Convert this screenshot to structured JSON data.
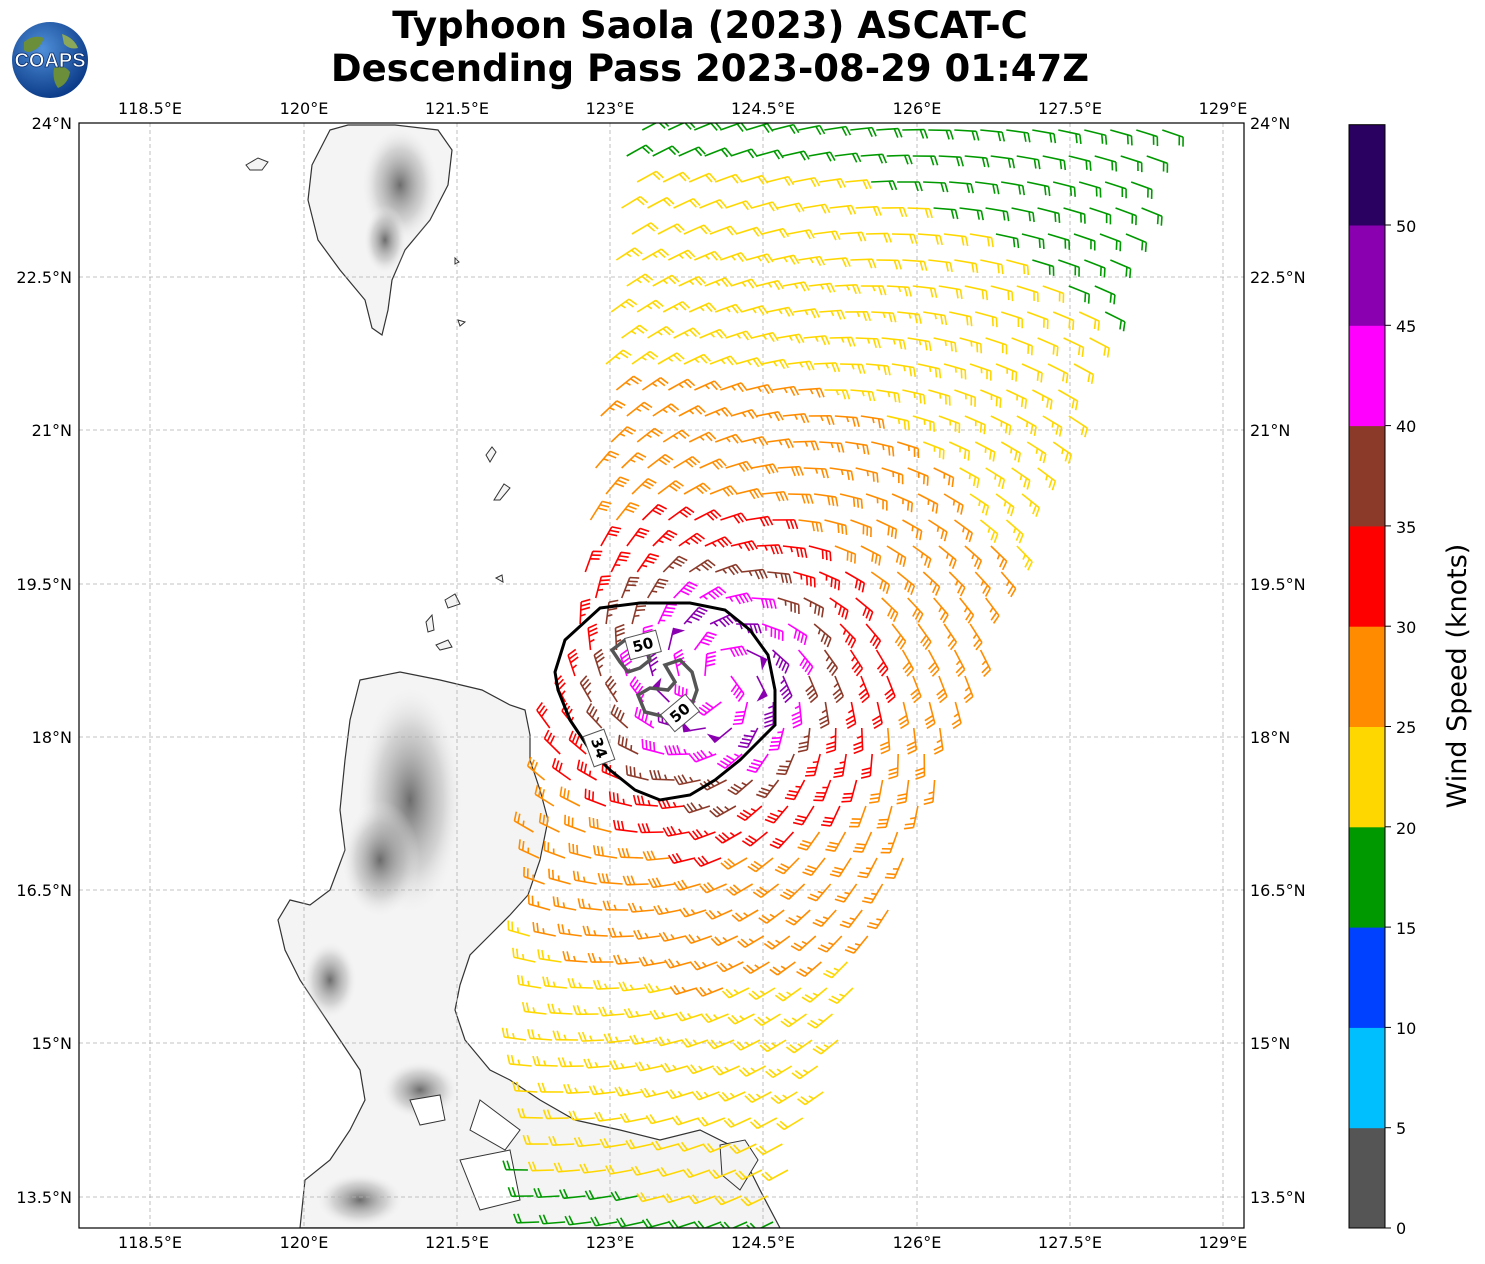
{
  "title": {
    "line1": "Typhoon Saola (2023) ASCAT-C",
    "line2": "Descending Pass 2023-08-29 01:47Z"
  },
  "logo": {
    "text": "COAPS",
    "icon": "globe-logo-icon"
  },
  "map": {
    "lon_range": [
      117.3,
      128.75
    ],
    "lat_range": [
      13.2,
      24.0
    ],
    "lon_ticks": [
      "118.5°E",
      "120°E",
      "121.5°E",
      "123°E",
      "124.5°E",
      "126°E",
      "127.5°E",
      "129°E"
    ],
    "lat_ticks": [
      "24°N",
      "22.5°N",
      "21°N",
      "19.5°N",
      "18°N",
      "16.5°N",
      "15°N",
      "13.5°N"
    ],
    "gridlines": true
  },
  "contours": [
    {
      "label": "34",
      "level": 34,
      "color": "#000000"
    },
    {
      "label": "50",
      "level": 50,
      "color": "#555555"
    },
    {
      "label": "50",
      "level": 50,
      "color": "#555555"
    }
  ],
  "storm_center": {
    "lon": 123.55,
    "lat": 18.55
  },
  "colorbar": {
    "label": "Wind Speed (knots)",
    "tick_labels": [
      "0",
      "5",
      "10",
      "15",
      "20",
      "25",
      "30",
      "35",
      "40",
      "45",
      "50"
    ],
    "colors": [
      "#555555",
      "#00bfff",
      "#0040ff",
      "#009900",
      "#ffd700",
      "#ff8c00",
      "#ff0000",
      "#8b3a2a",
      "#ff00ff",
      "#8a00b0",
      "#2a0060"
    ]
  }
}
